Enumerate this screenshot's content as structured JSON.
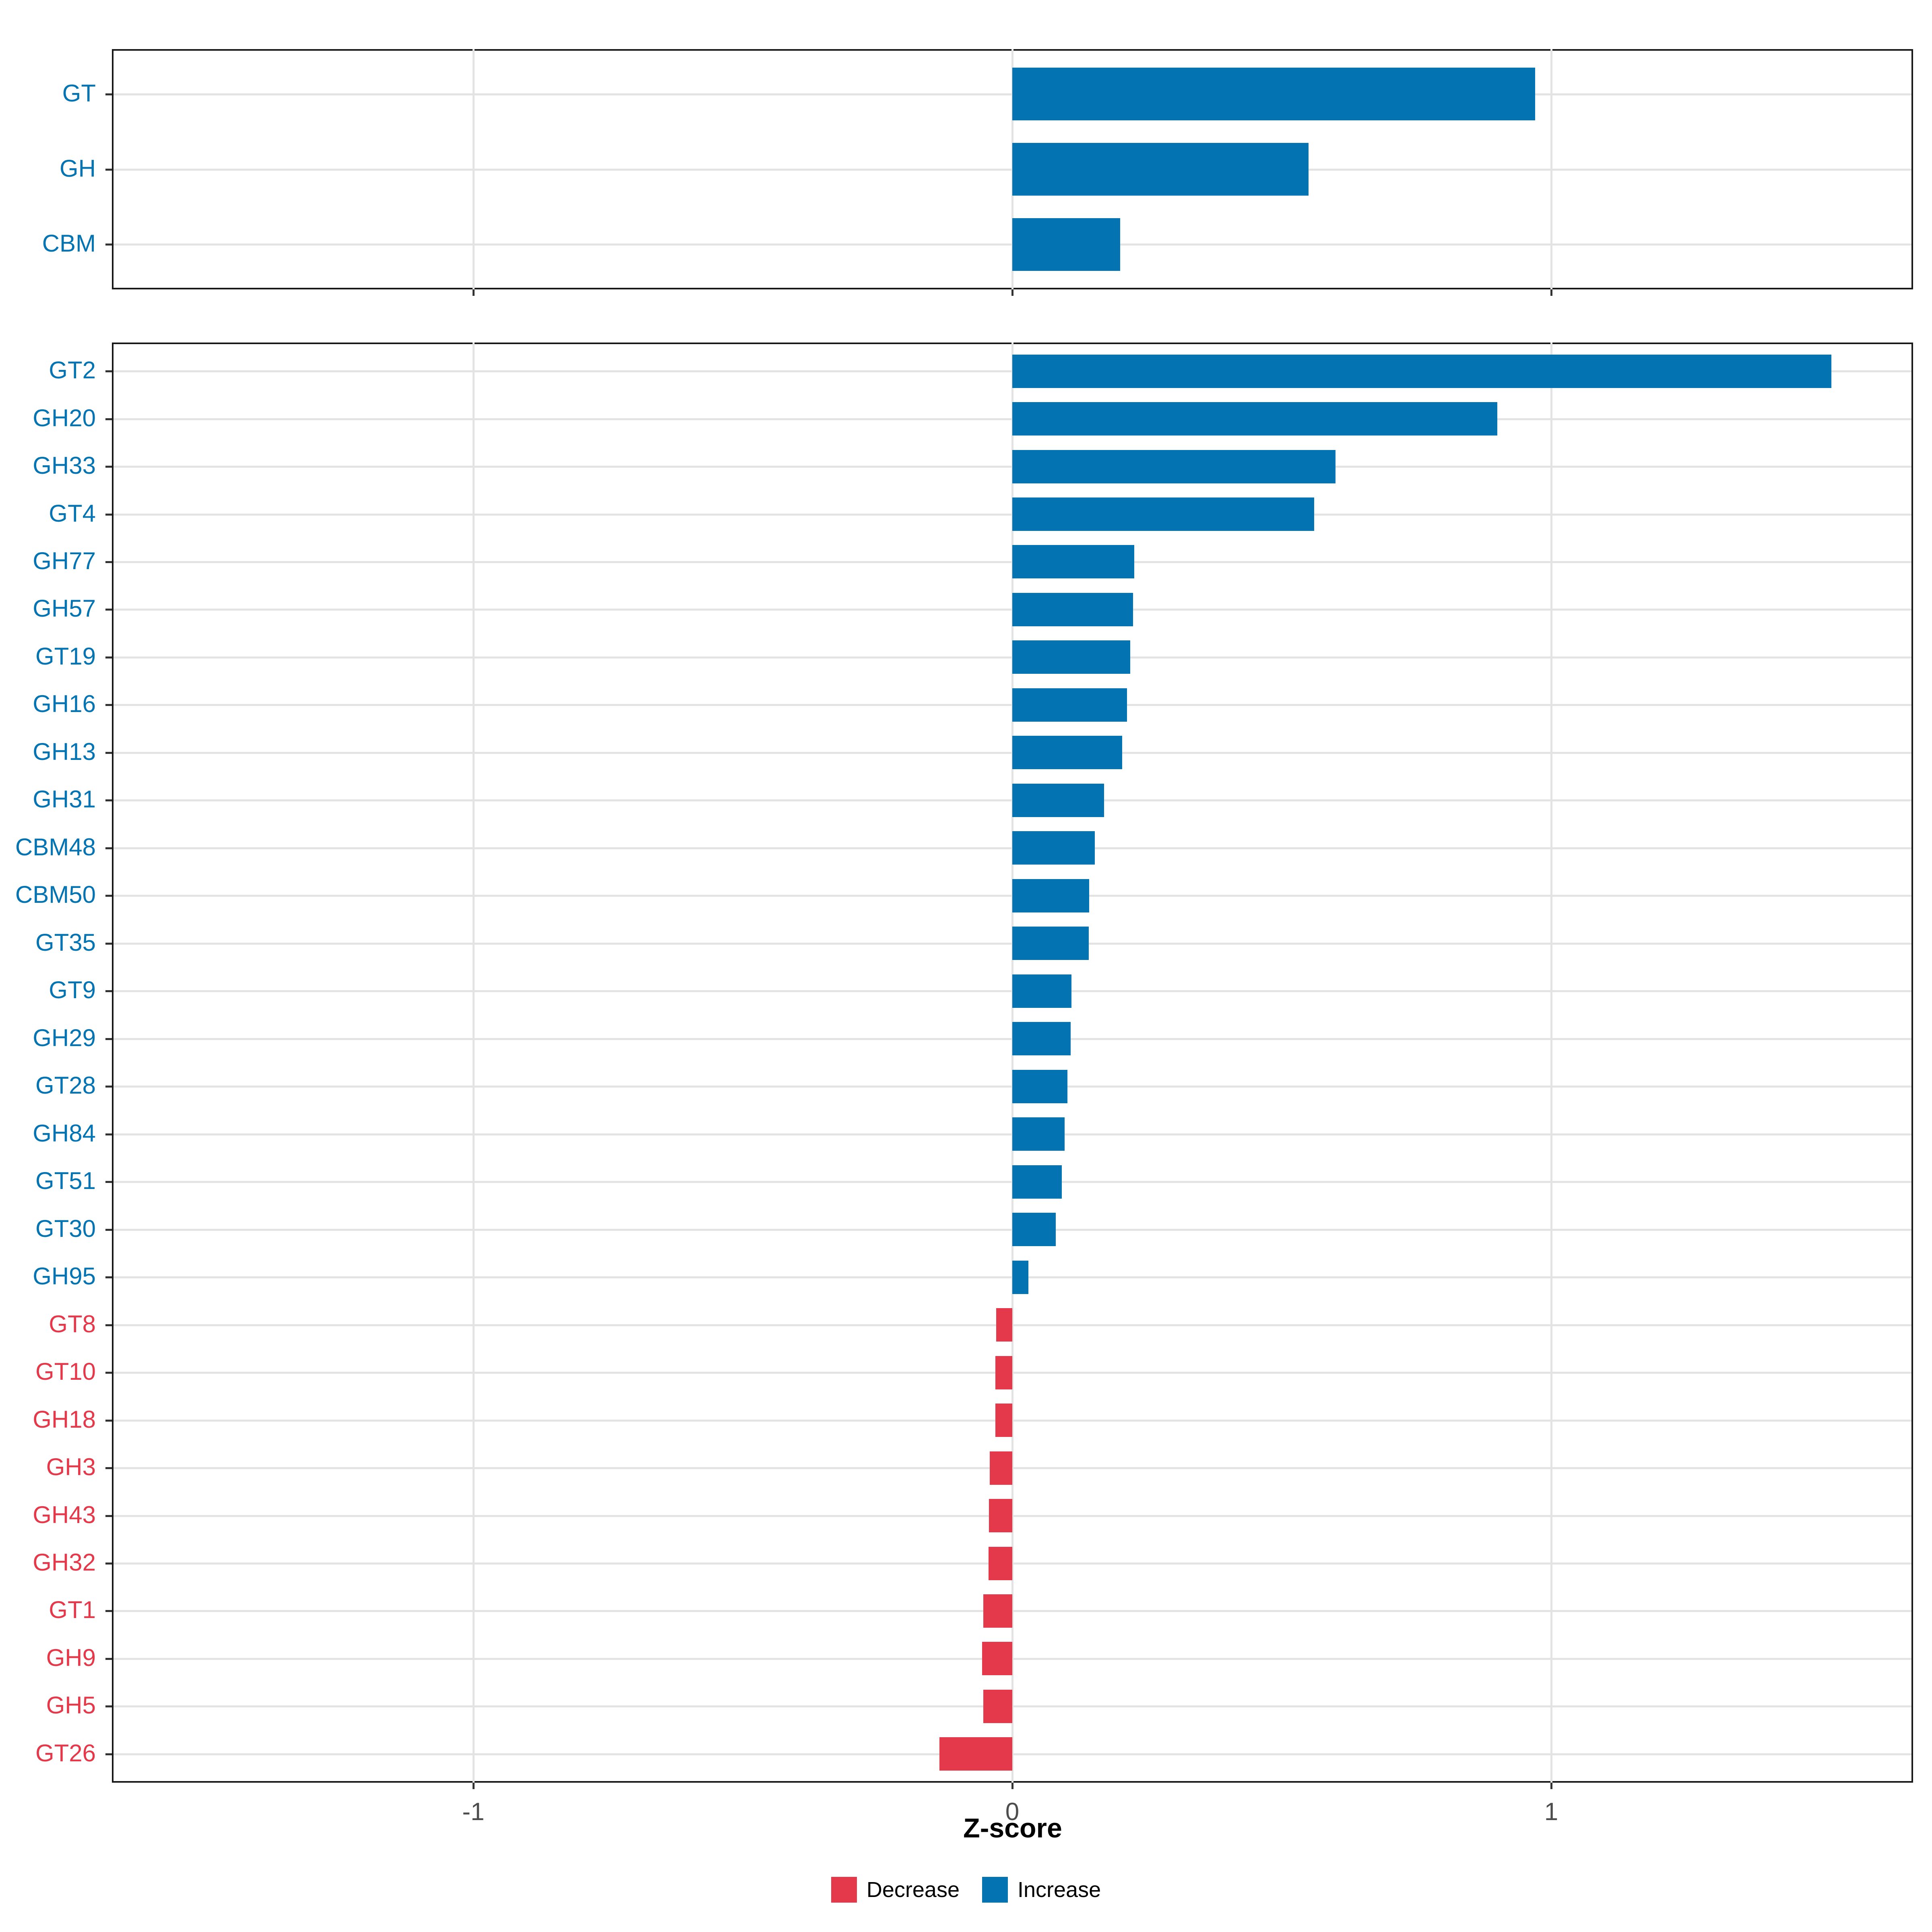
{
  "chart_data": [
    {
      "type": "bar",
      "orientation": "horizontal",
      "panel": "top",
      "title": "",
      "categories": [
        "GT",
        "GH",
        "CBM"
      ],
      "values": [
        0.97,
        0.55,
        0.2
      ],
      "directions": [
        "increase",
        "increase",
        "increase"
      ],
      "xlim": [
        -1.67,
        1.67
      ],
      "grid": true
    },
    {
      "type": "bar",
      "orientation": "horizontal",
      "panel": "bottom",
      "title": "",
      "categories": [
        "GT2",
        "GH20",
        "GH33",
        "GT4",
        "GH77",
        "GH57",
        "GT19",
        "GH16",
        "GH13",
        "GH31",
        "CBM48",
        "CBM50",
        "GT35",
        "GT9",
        "GH29",
        "GT28",
        "GH84",
        "GT51",
        "GT30",
        "GH95",
        "GT8",
        "GT10",
        "GH18",
        "GH3",
        "GH43",
        "GH32",
        "GT1",
        "GH9",
        "GH5",
        "GT26"
      ],
      "values": [
        1.52,
        0.9,
        0.6,
        0.56,
        0.226,
        0.224,
        0.219,
        0.213,
        0.204,
        0.17,
        0.153,
        0.143,
        0.142,
        0.11,
        0.108,
        0.102,
        0.097,
        0.092,
        0.081,
        0.03,
        -0.03,
        -0.031,
        -0.031,
        -0.042,
        -0.043,
        -0.044,
        -0.054,
        -0.056,
        -0.054,
        -0.135
      ],
      "directions": [
        "increase",
        "increase",
        "increase",
        "increase",
        "increase",
        "increase",
        "increase",
        "increase",
        "increase",
        "increase",
        "increase",
        "increase",
        "increase",
        "increase",
        "increase",
        "increase",
        "increase",
        "increase",
        "increase",
        "increase",
        "decrease",
        "decrease",
        "decrease",
        "decrease",
        "decrease",
        "decrease",
        "decrease",
        "decrease",
        "decrease",
        "decrease"
      ],
      "xlim": [
        -1.67,
        1.67
      ],
      "grid": true
    }
  ],
  "axis": {
    "x_label": "Z-score",
    "x_tick_values": [
      -1,
      0,
      1
    ],
    "x_tick_labels": [
      "-1",
      "0",
      "1"
    ]
  },
  "legend": {
    "items": [
      {
        "label": "Decrease",
        "direction": "decrease"
      },
      {
        "label": "Increase",
        "direction": "increase"
      }
    ]
  },
  "colors": {
    "increase": "#0473B2",
    "decrease": "#E4394A",
    "gridline": "#E3E3E3",
    "panel_border": "#181818",
    "tick": "#333333",
    "tick_label": "#4D4D4D"
  }
}
